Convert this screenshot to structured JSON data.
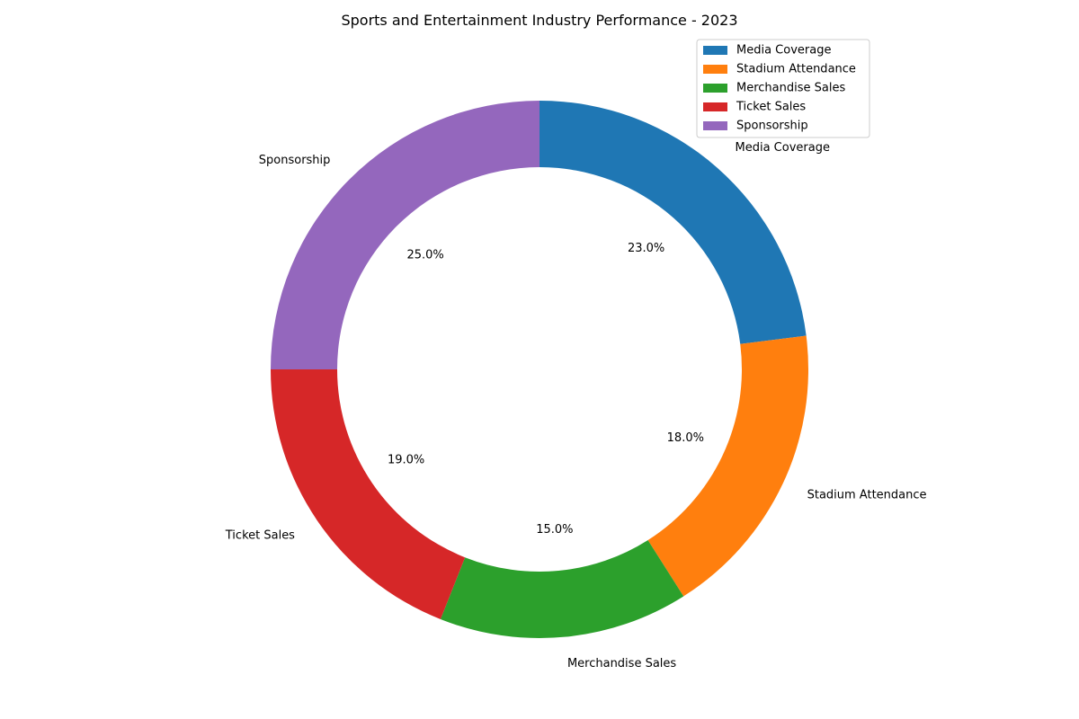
{
  "chart_data": {
    "type": "pie",
    "title": "Sports and Entertainment Industry Performance - 2023",
    "donut": true,
    "start_angle_deg": 90,
    "direction": "clockwise",
    "legend_position": "top-right",
    "categories": [
      "Media Coverage",
      "Stadium Attendance",
      "Merchandise Sales",
      "Ticket Sales",
      "Sponsorship"
    ],
    "values": [
      23.0,
      18.0,
      15.0,
      19.0,
      25.0
    ],
    "percent_labels": [
      "23.0%",
      "18.0%",
      "15.0%",
      "19.0%",
      "25.0%"
    ],
    "colors": [
      "#1f77b4",
      "#ff7f0e",
      "#2ca02c",
      "#d62728",
      "#9467bd"
    ]
  }
}
